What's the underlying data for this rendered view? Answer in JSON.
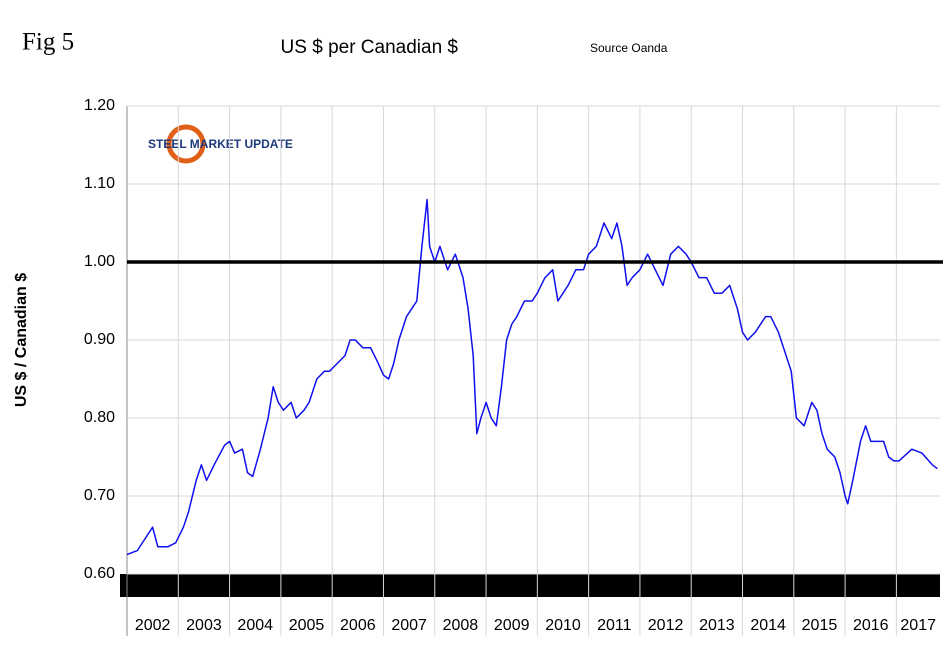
{
  "chart_data": {
    "type": "line",
    "figure_label": "Fig 5",
    "title": "US $ per Canadian $",
    "subtitle": "Source Oanda",
    "logo": "STEEL MARKET UPDATE",
    "y_label": "US $ / Canadian $",
    "categories": [
      "2002",
      "2003",
      "2004",
      "2005",
      "2006",
      "2007",
      "2008",
      "2009",
      "2010",
      "2011",
      "2012",
      "2013",
      "2014",
      "2015",
      "2016",
      "2017"
    ],
    "xticks": [
      2002,
      2003,
      2004,
      2005,
      2006,
      2007,
      2008,
      2009,
      2010,
      2011,
      2012,
      2013,
      2014,
      2015,
      2016,
      2017
    ],
    "xlim": [
      2002,
      2017.85
    ],
    "ylim": [
      0.6,
      1.2
    ],
    "yticks": [
      {
        "value": 0.6,
        "label": "0.60"
      },
      {
        "value": 0.7,
        "label": "0.70"
      },
      {
        "value": 0.8,
        "label": "0.80"
      },
      {
        "value": 0.9,
        "label": "0.90"
      },
      {
        "value": 1.0,
        "label": "1.00"
      },
      {
        "value": 1.1,
        "label": "1.10"
      },
      {
        "value": 1.2,
        "label": "1.20"
      }
    ],
    "grid": true,
    "reference_line": 1.0,
    "x": [
      2002.0,
      2002.2,
      2002.4,
      2002.5,
      2002.6,
      2002.8,
      2002.95,
      2003.1,
      2003.2,
      2003.35,
      2003.45,
      2003.55,
      2003.7,
      2003.9,
      2004.0,
      2004.1,
      2004.25,
      2004.35,
      2004.45,
      2004.6,
      2004.75,
      2004.85,
      2004.95,
      2005.05,
      2005.2,
      2005.3,
      2005.45,
      2005.55,
      2005.7,
      2005.85,
      2005.95,
      2006.1,
      2006.25,
      2006.35,
      2006.45,
      2006.6,
      2006.75,
      2006.9,
      2007.0,
      2007.1,
      2007.2,
      2007.3,
      2007.45,
      2007.55,
      2007.65,
      2007.75,
      2007.85,
      2007.9,
      2008.0,
      2008.1,
      2008.25,
      2008.4,
      2008.55,
      2008.65,
      2008.75,
      2008.82,
      2008.9,
      2009.0,
      2009.1,
      2009.2,
      2009.3,
      2009.4,
      2009.5,
      2009.6,
      2009.75,
      2009.9,
      2010.0,
      2010.15,
      2010.3,
      2010.4,
      2010.5,
      2010.6,
      2010.75,
      2010.9,
      2011.0,
      2011.15,
      2011.3,
      2011.45,
      2011.55,
      2011.65,
      2011.75,
      2011.85,
      2012.0,
      2012.15,
      2012.3,
      2012.45,
      2012.6,
      2012.75,
      2012.9,
      2013.0,
      2013.15,
      2013.3,
      2013.45,
      2013.6,
      2013.75,
      2013.9,
      2014.0,
      2014.1,
      2014.25,
      2014.45,
      2014.55,
      2014.7,
      2014.85,
      2014.95,
      2015.05,
      2015.2,
      2015.35,
      2015.45,
      2015.55,
      2015.65,
      2015.8,
      2015.9,
      2016.0,
      2016.05,
      2016.15,
      2016.3,
      2016.4,
      2016.5,
      2016.6,
      2016.75,
      2016.85,
      2016.95,
      2017.05,
      2017.3,
      2017.5,
      2017.7,
      2017.8
    ],
    "series": [
      {
        "name": "US $ per Canadian $",
        "color": "#1010ee",
        "values": [
          0.625,
          0.63,
          0.65,
          0.66,
          0.635,
          0.635,
          0.64,
          0.66,
          0.68,
          0.72,
          0.74,
          0.72,
          0.74,
          0.765,
          0.77,
          0.755,
          0.76,
          0.73,
          0.725,
          0.76,
          0.8,
          0.84,
          0.82,
          0.81,
          0.82,
          0.8,
          0.81,
          0.82,
          0.85,
          0.86,
          0.86,
          0.87,
          0.88,
          0.9,
          0.9,
          0.89,
          0.89,
          0.87,
          0.855,
          0.85,
          0.87,
          0.9,
          0.93,
          0.94,
          0.95,
          1.02,
          1.08,
          1.02,
          1.0,
          1.02,
          0.99,
          1.01,
          0.98,
          0.94,
          0.88,
          0.78,
          0.8,
          0.82,
          0.8,
          0.79,
          0.84,
          0.9,
          0.92,
          0.93,
          0.95,
          0.95,
          0.96,
          0.98,
          0.99,
          0.95,
          0.96,
          0.97,
          0.99,
          0.99,
          1.01,
          1.02,
          1.05,
          1.03,
          1.05,
          1.02,
          0.97,
          0.98,
          0.99,
          1.01,
          0.99,
          0.97,
          1.01,
          1.02,
          1.01,
          1.0,
          0.98,
          0.98,
          0.96,
          0.96,
          0.97,
          0.94,
          0.91,
          0.9,
          0.91,
          0.93,
          0.93,
          0.91,
          0.88,
          0.86,
          0.8,
          0.79,
          0.82,
          0.81,
          0.78,
          0.76,
          0.75,
          0.73,
          0.7,
          0.69,
          0.72,
          0.77,
          0.79,
          0.77,
          0.77,
          0.77,
          0.75,
          0.745,
          0.745,
          0.76,
          0.755,
          0.74,
          0.735
        ]
      }
    ]
  }
}
